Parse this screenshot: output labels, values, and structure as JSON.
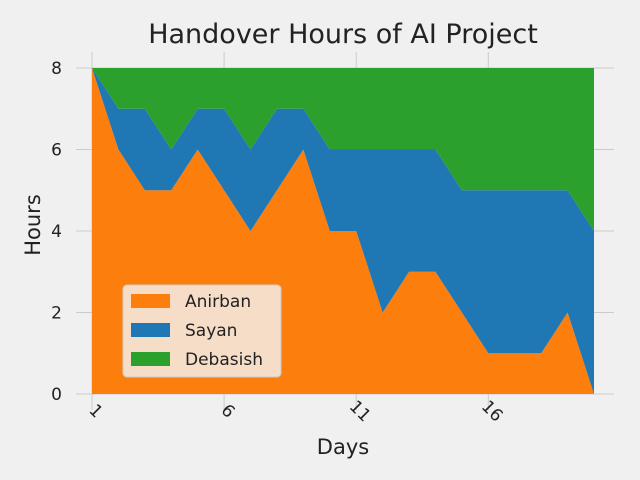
{
  "colors": {
    "background": "#f0f0f0",
    "grid": "#cbcbcb",
    "anirban": "#fc7f0e",
    "sayan": "#1f77b4",
    "debasish": "#2ca02c"
  },
  "chart_data": {
    "type": "area",
    "stacked": true,
    "title": "Handover Hours of AI Project",
    "xlabel": "Days",
    "ylabel": "Hours",
    "x": [
      1,
      2,
      3,
      4,
      5,
      6,
      7,
      8,
      9,
      10,
      11,
      12,
      13,
      14,
      15,
      16,
      17,
      18,
      19,
      20
    ],
    "xlim": [
      1,
      20
    ],
    "ylim": [
      0,
      8
    ],
    "xticks": [
      1,
      6,
      11,
      16
    ],
    "yticks": [
      0,
      2,
      4,
      6,
      8
    ],
    "series": [
      {
        "name": "Anirban",
        "color": "#fc7f0e",
        "values": [
          8,
          6,
          5,
          5,
          6,
          5,
          4,
          5,
          6,
          4,
          4,
          2,
          3,
          3,
          2,
          1,
          1,
          1,
          2,
          0
        ]
      },
      {
        "name": "Sayan",
        "color": "#1f77b4",
        "values": [
          0,
          1,
          2,
          1,
          1,
          2,
          2,
          2,
          1,
          2,
          2,
          4,
          3,
          3,
          3,
          4,
          4,
          4,
          3,
          4
        ]
      },
      {
        "name": "Debasish",
        "color": "#2ca02c",
        "values": [
          0,
          1,
          1,
          2,
          1,
          1,
          2,
          1,
          1,
          2,
          2,
          2,
          2,
          2,
          3,
          3,
          3,
          3,
          3,
          4
        ]
      }
    ],
    "legend": {
      "position": "lower-left",
      "entries": [
        "Anirban",
        "Sayan",
        "Debasish"
      ]
    },
    "grid": true
  }
}
